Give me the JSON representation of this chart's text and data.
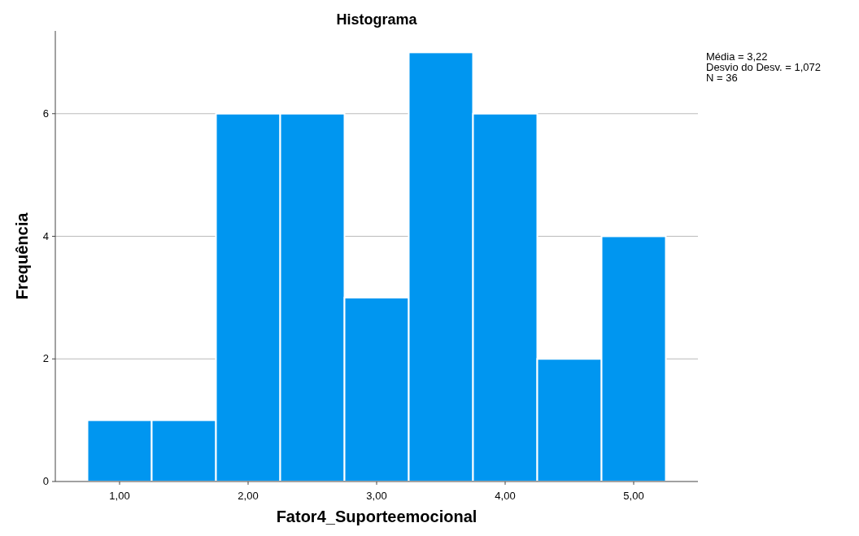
{
  "chart_data": {
    "type": "histogram",
    "title": "Histograma",
    "xlabel": "Fator4_Suporteemocional",
    "ylabel": "Frequência",
    "bins": [
      0.75,
      1.25,
      1.75,
      2.25,
      2.75,
      3.25,
      3.75,
      4.25,
      4.75,
      5.25
    ],
    "values": [
      1,
      1,
      6,
      6,
      3,
      7,
      6,
      2,
      4
    ],
    "color": "#0096f0",
    "xlim": [
      0.5,
      5.5
    ],
    "xticks": [
      {
        "value": 1,
        "label": "1,00"
      },
      {
        "value": 2,
        "label": "2,00"
      },
      {
        "value": 3,
        "label": "3,00"
      },
      {
        "value": 4,
        "label": "4,00"
      },
      {
        "value": 5,
        "label": "5,00"
      }
    ],
    "ylim": [
      0,
      7.35
    ],
    "yticks": [
      0,
      2,
      4,
      6
    ],
    "grid": "y",
    "annotations": [
      "Média = 3,22",
      "Desvio do Desv. = 1,072",
      "N = 36"
    ]
  }
}
